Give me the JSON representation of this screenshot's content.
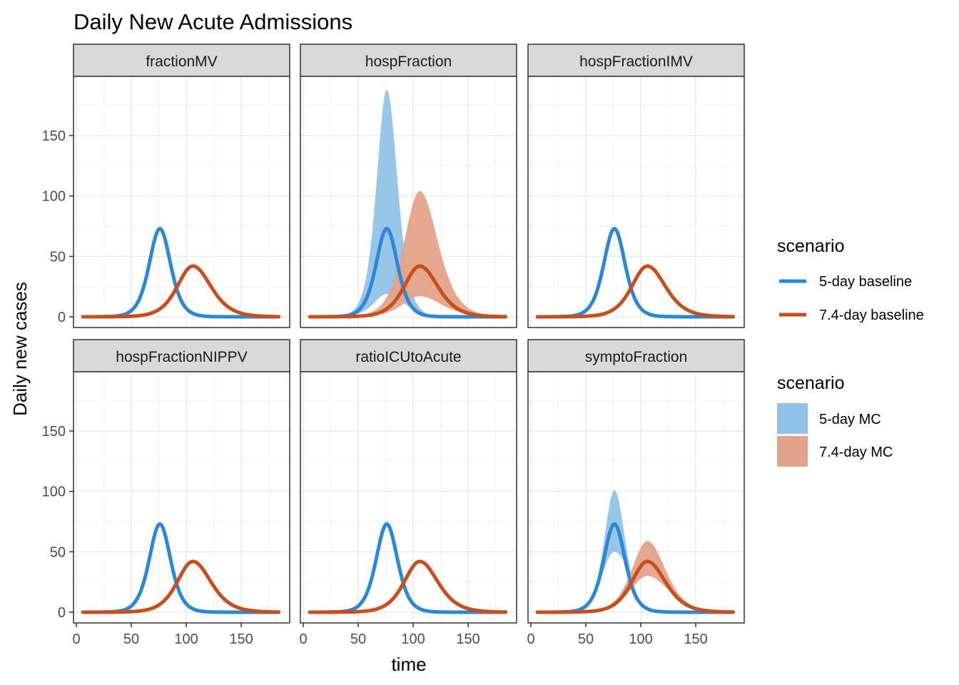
{
  "chart_data": {
    "type": "line",
    "title": "Daily New Acute Admissions",
    "xlabel": "time",
    "ylabel": "Daily new cases",
    "xlim": [
      0,
      185
    ],
    "ylim": [
      -10,
      200
    ],
    "x_ticks": [
      0,
      50,
      100,
      150
    ],
    "y_ticks": [
      0,
      50,
      100,
      150
    ],
    "grid": true,
    "legend_placement": "right",
    "colors": {
      "five_day_line": "#2b88d8",
      "seven_day_line": "#c84f1c",
      "five_day_band": "#91c3e8",
      "seven_day_band": "#e3a38a"
    },
    "legend_lines": {
      "title": "scenario",
      "entries": [
        "5-day baseline",
        "7.4-day baseline"
      ]
    },
    "legend_bands": {
      "title": "scenario",
      "entries": [
        "5-day MC",
        "7.4-day MC"
      ]
    },
    "panels": [
      {
        "name": "fractionMV",
        "series": [
          {
            "name": "5-day baseline",
            "peak_x": 76,
            "peak_y": 73
          },
          {
            "name": "7.4-day baseline",
            "peak_x": 106,
            "peak_y": 42
          }
        ]
      },
      {
        "name": "hospFraction",
        "series": [
          {
            "name": "5-day baseline",
            "peak_x": 76,
            "peak_y": 73
          },
          {
            "name": "7.4-day baseline",
            "peak_x": 106,
            "peak_y": 42
          }
        ],
        "bands": [
          {
            "name": "5-day MC",
            "peak_x": 76,
            "upper_peak": 188,
            "lower_peak": 19
          },
          {
            "name": "7.4-day MC",
            "peak_x": 106,
            "upper_peak": 104,
            "lower_peak": 17
          }
        ]
      },
      {
        "name": "hospFractionIMV",
        "series": [
          {
            "name": "5-day baseline",
            "peak_x": 76,
            "peak_y": 73
          },
          {
            "name": "7.4-day baseline",
            "peak_x": 106,
            "peak_y": 42
          }
        ]
      },
      {
        "name": "hospFractionNIPPV",
        "series": [
          {
            "name": "5-day baseline",
            "peak_x": 76,
            "peak_y": 73
          },
          {
            "name": "7.4-day baseline",
            "peak_x": 106,
            "peak_y": 42
          }
        ]
      },
      {
        "name": "ratioICUtoAcute",
        "series": [
          {
            "name": "5-day baseline",
            "peak_x": 76,
            "peak_y": 73
          },
          {
            "name": "7.4-day baseline",
            "peak_x": 106,
            "peak_y": 42
          }
        ],
        "bands": [
          {
            "name": "5-day MC",
            "peak_x": 76,
            "upper_peak": 75,
            "lower_peak": 72
          },
          {
            "name": "7.4-day MC",
            "peak_x": 106,
            "upper_peak": 43,
            "lower_peak": 41
          }
        ]
      },
      {
        "name": "symptoFraction",
        "series": [
          {
            "name": "5-day baseline",
            "peak_x": 76,
            "peak_y": 73
          },
          {
            "name": "7.4-day baseline",
            "peak_x": 106,
            "peak_y": 42
          }
        ],
        "bands": [
          {
            "name": "5-day MC",
            "peak_x": 76,
            "upper_peak": 101,
            "lower_peak": 50
          },
          {
            "name": "7.4-day MC",
            "peak_x": 106,
            "upper_peak": 59,
            "lower_peak": 30
          }
        ]
      }
    ]
  }
}
